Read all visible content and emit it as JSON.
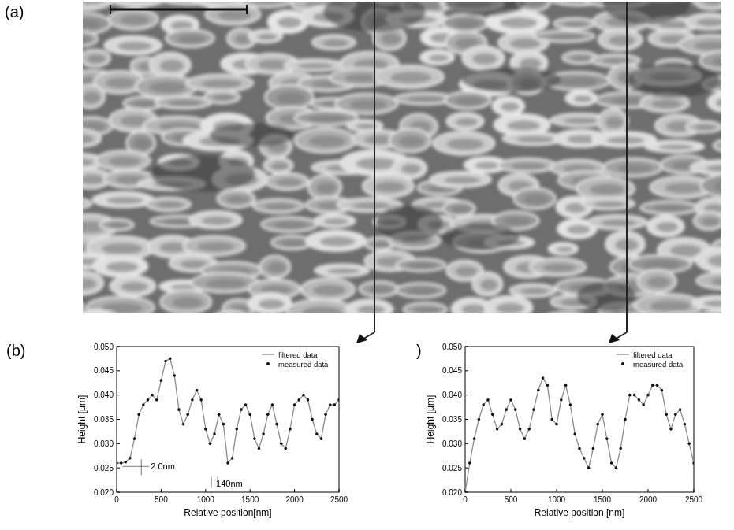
{
  "image": {
    "panel_label": "(a)"
  },
  "chart_data": [
    {
      "type": "line",
      "panel_label": "(b)",
      "x_label": "Relative position[nm]",
      "y_label": "Height [μm]",
      "annotations": [
        "2.0nm",
        "140nm"
      ],
      "x": [
        0,
        50,
        100,
        150,
        200,
        250,
        300,
        350,
        400,
        450,
        500,
        550,
        600,
        650,
        700,
        750,
        800,
        850,
        900,
        950,
        1000,
        1050,
        1100,
        1150,
        1200,
        1250,
        1300,
        1350,
        1400,
        1450,
        1500,
        1550,
        1600,
        1650,
        1700,
        1750,
        1800,
        1850,
        1900,
        1950,
        2000,
        2050,
        2100,
        2150,
        2200,
        2250,
        2300,
        2350,
        2400,
        2450,
        2500
      ],
      "xlim": [
        0,
        2500
      ],
      "xticks": [
        0,
        500,
        1000,
        1500,
        2000,
        2500
      ],
      "ylim": [
        0.02,
        0.05
      ],
      "yticks": [
        {
          "value": 0.02,
          "label": "0.020"
        },
        {
          "value": 0.025,
          "label": "0.025"
        },
        {
          "value": 0.03,
          "label": "0.030"
        },
        {
          "value": 0.035,
          "label": "0.035"
        },
        {
          "value": 0.04,
          "label": "0.040"
        },
        {
          "value": 0.045,
          "label": "0.045"
        },
        {
          "value": 0.05,
          "label": "0.050"
        }
      ],
      "legend": "upper right",
      "series": [
        {
          "name": "filtered data",
          "color": "#8a8a8a",
          "line_style": "solid",
          "marker": "none",
          "values": [
            0.026,
            0.026,
            0.0262,
            0.027,
            0.031,
            0.036,
            0.038,
            0.039,
            0.04,
            0.039,
            0.043,
            0.047,
            0.0475,
            0.044,
            0.037,
            0.034,
            0.036,
            0.039,
            0.041,
            0.039,
            0.033,
            0.03,
            0.032,
            0.036,
            0.034,
            0.026,
            0.027,
            0.033,
            0.037,
            0.038,
            0.036,
            0.031,
            0.029,
            0.032,
            0.036,
            0.038,
            0.034,
            0.03,
            0.029,
            0.033,
            0.038,
            0.039,
            0.04,
            0.039,
            0.035,
            0.032,
            0.031,
            0.036,
            0.038,
            0.038,
            0.039
          ]
        },
        {
          "name": "measured data",
          "color": "#111111",
          "line_style": "none",
          "marker": "circle",
          "values": [
            0.026,
            0.026,
            0.0262,
            0.027,
            0.031,
            0.036,
            0.038,
            0.039,
            0.04,
            0.039,
            0.043,
            0.047,
            0.0475,
            0.044,
            0.037,
            0.034,
            0.036,
            0.039,
            0.041,
            0.039,
            0.033,
            0.03,
            0.032,
            0.036,
            0.034,
            0.026,
            0.027,
            0.033,
            0.037,
            0.038,
            0.036,
            0.031,
            0.029,
            0.032,
            0.036,
            0.038,
            0.034,
            0.03,
            0.029,
            0.033,
            0.038,
            0.039,
            0.04,
            0.039,
            0.035,
            0.032,
            0.031,
            0.036,
            0.038,
            0.038,
            0.039
          ]
        }
      ]
    },
    {
      "type": "line",
      "panel_label": ")",
      "x_label": "Relative position [nm]",
      "y_label": "Height [μm]",
      "x": [
        0,
        50,
        100,
        150,
        200,
        250,
        300,
        350,
        400,
        450,
        500,
        550,
        600,
        650,
        700,
        750,
        800,
        850,
        900,
        950,
        1000,
        1050,
        1100,
        1150,
        1200,
        1250,
        1300,
        1350,
        1400,
        1450,
        1500,
        1550,
        1600,
        1650,
        1700,
        1750,
        1800,
        1850,
        1900,
        1950,
        2000,
        2050,
        2100,
        2150,
        2200,
        2250,
        2300,
        2350,
        2400,
        2450,
        2500
      ],
      "xlim": [
        0,
        2500
      ],
      "xticks": [
        0,
        500,
        1000,
        1500,
        2000,
        2500
      ],
      "ylim": [
        0.02,
        0.05
      ],
      "yticks": [
        {
          "value": 0.02,
          "label": "0.020"
        },
        {
          "value": 0.025,
          "label": "0.025"
        },
        {
          "value": 0.03,
          "label": "0.030"
        },
        {
          "value": 0.035,
          "label": "0.035"
        },
        {
          "value": 0.04,
          "label": "0.040"
        },
        {
          "value": 0.045,
          "label": "0.045"
        },
        {
          "value": 0.05,
          "label": "0.050"
        }
      ],
      "legend": "upper right",
      "series": [
        {
          "name": "filtered data",
          "color": "#8a8a8a",
          "line_style": "solid",
          "marker": "none",
          "values": [
            0.02,
            0.026,
            0.031,
            0.035,
            0.038,
            0.039,
            0.036,
            0.033,
            0.034,
            0.037,
            0.039,
            0.037,
            0.033,
            0.031,
            0.033,
            0.037,
            0.041,
            0.0435,
            0.042,
            0.035,
            0.034,
            0.039,
            0.042,
            0.038,
            0.032,
            0.029,
            0.027,
            0.025,
            0.029,
            0.034,
            0.036,
            0.031,
            0.026,
            0.025,
            0.029,
            0.035,
            0.04,
            0.04,
            0.039,
            0.038,
            0.04,
            0.042,
            0.042,
            0.041,
            0.036,
            0.033,
            0.036,
            0.037,
            0.034,
            0.03,
            0.026
          ]
        },
        {
          "name": "measured data",
          "color": "#111111",
          "line_style": "none",
          "marker": "circle",
          "values": [
            0.02,
            0.026,
            0.031,
            0.035,
            0.038,
            0.039,
            0.036,
            0.033,
            0.034,
            0.037,
            0.039,
            0.037,
            0.033,
            0.031,
            0.033,
            0.037,
            0.041,
            0.0435,
            0.042,
            0.035,
            0.034,
            0.039,
            0.042,
            0.038,
            0.032,
            0.029,
            0.027,
            0.025,
            0.029,
            0.034,
            0.036,
            0.031,
            0.026,
            0.025,
            0.029,
            0.035,
            0.04,
            0.04,
            0.039,
            0.038,
            0.04,
            0.042,
            0.042,
            0.041,
            0.036,
            0.033,
            0.036,
            0.037,
            0.034,
            0.03,
            0.026
          ]
        }
      ]
    }
  ]
}
